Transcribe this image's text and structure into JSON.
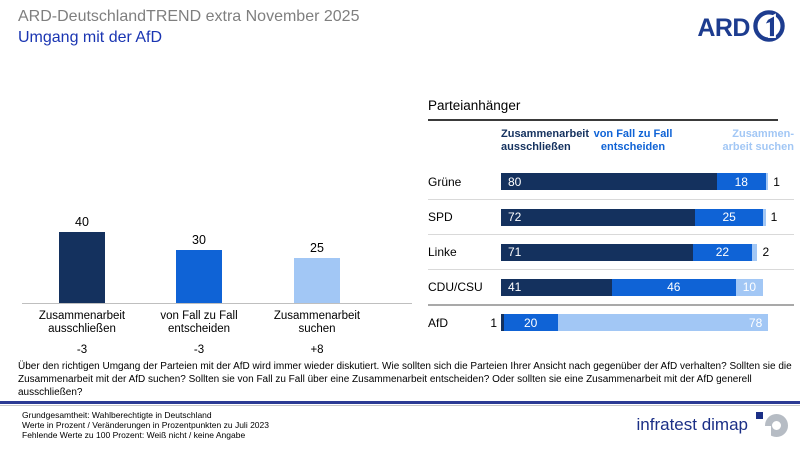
{
  "header": {
    "suptitle": "ARD-DeutschlandTREND extra November 2025",
    "title": "Umgang mit der AfD",
    "ard_logo": "ARD"
  },
  "colors": {
    "dark_navy": "#14315e",
    "medium_blue": "#0f63d6",
    "light_blue": "#a2c7f5",
    "title_blue": "#1a35b2",
    "ard_blue": "#1d3c8f",
    "bottom_rule": "#2c3a94"
  },
  "chart_data": [
    {
      "type": "bar",
      "categories": [
        "Zusammenarbeit ausschließen",
        "von Fall zu Fall entscheiden",
        "Zusammenarbeit suchen"
      ],
      "values": [
        40,
        30,
        25
      ],
      "changes": [
        "-3",
        "-3",
        "+8"
      ],
      "colors": [
        "#14315e",
        "#0f63d6",
        "#a2c7f5"
      ],
      "ylim": [
        0,
        45
      ],
      "grid": false
    },
    {
      "type": "bar",
      "orientation": "horizontal-stacked",
      "title": "Parteianhänger",
      "categories": [
        "Grüne",
        "SPD",
        "Linke",
        "CDU/CSU",
        "AfD"
      ],
      "col_headers": [
        "Zusammenarbeit ausschließen",
        "von Fall zu Fall entscheiden",
        "Zusammen-arbeit suchen"
      ],
      "series": [
        {
          "name": "Zusammenarbeit ausschließen",
          "values": [
            80,
            72,
            71,
            41,
            1
          ]
        },
        {
          "name": "von Fall zu Fall entscheiden",
          "values": [
            18,
            25,
            22,
            46,
            20
          ]
        },
        {
          "name": "Zusammenarbeit suchen",
          "values": [
            1,
            1,
            2,
            10,
            78
          ]
        }
      ],
      "colors": [
        "#14315e",
        "#0f63d6",
        "#a2c7f5"
      ],
      "xlim": [
        0,
        100
      ]
    }
  ],
  "question": "Über den richtigen Umgang der Parteien mit der AfD wird immer wieder diskutiert. Wie sollten sich die Parteien Ihrer Ansicht nach gegenüber der AfD verhalten? Sollten sie die Zusammenarbeit mit der AfD suchen? Sollten sie von Fall zu Fall über eine Zusammenarbeit entscheiden? Oder sollten sie eine Zusammenarbeit mit der AfD generell ausschließen?",
  "footer": {
    "lines": [
      "Grundgesamtheit: Wahlberechtigte in Deutschland",
      "Werte in Prozent / Veränderungen in Prozentpunkten zu Juli 2023",
      "Fehlende Werte zu 100 Prozent: Weiß nicht / keine Angabe"
    ],
    "brand": "infratest dimap"
  }
}
